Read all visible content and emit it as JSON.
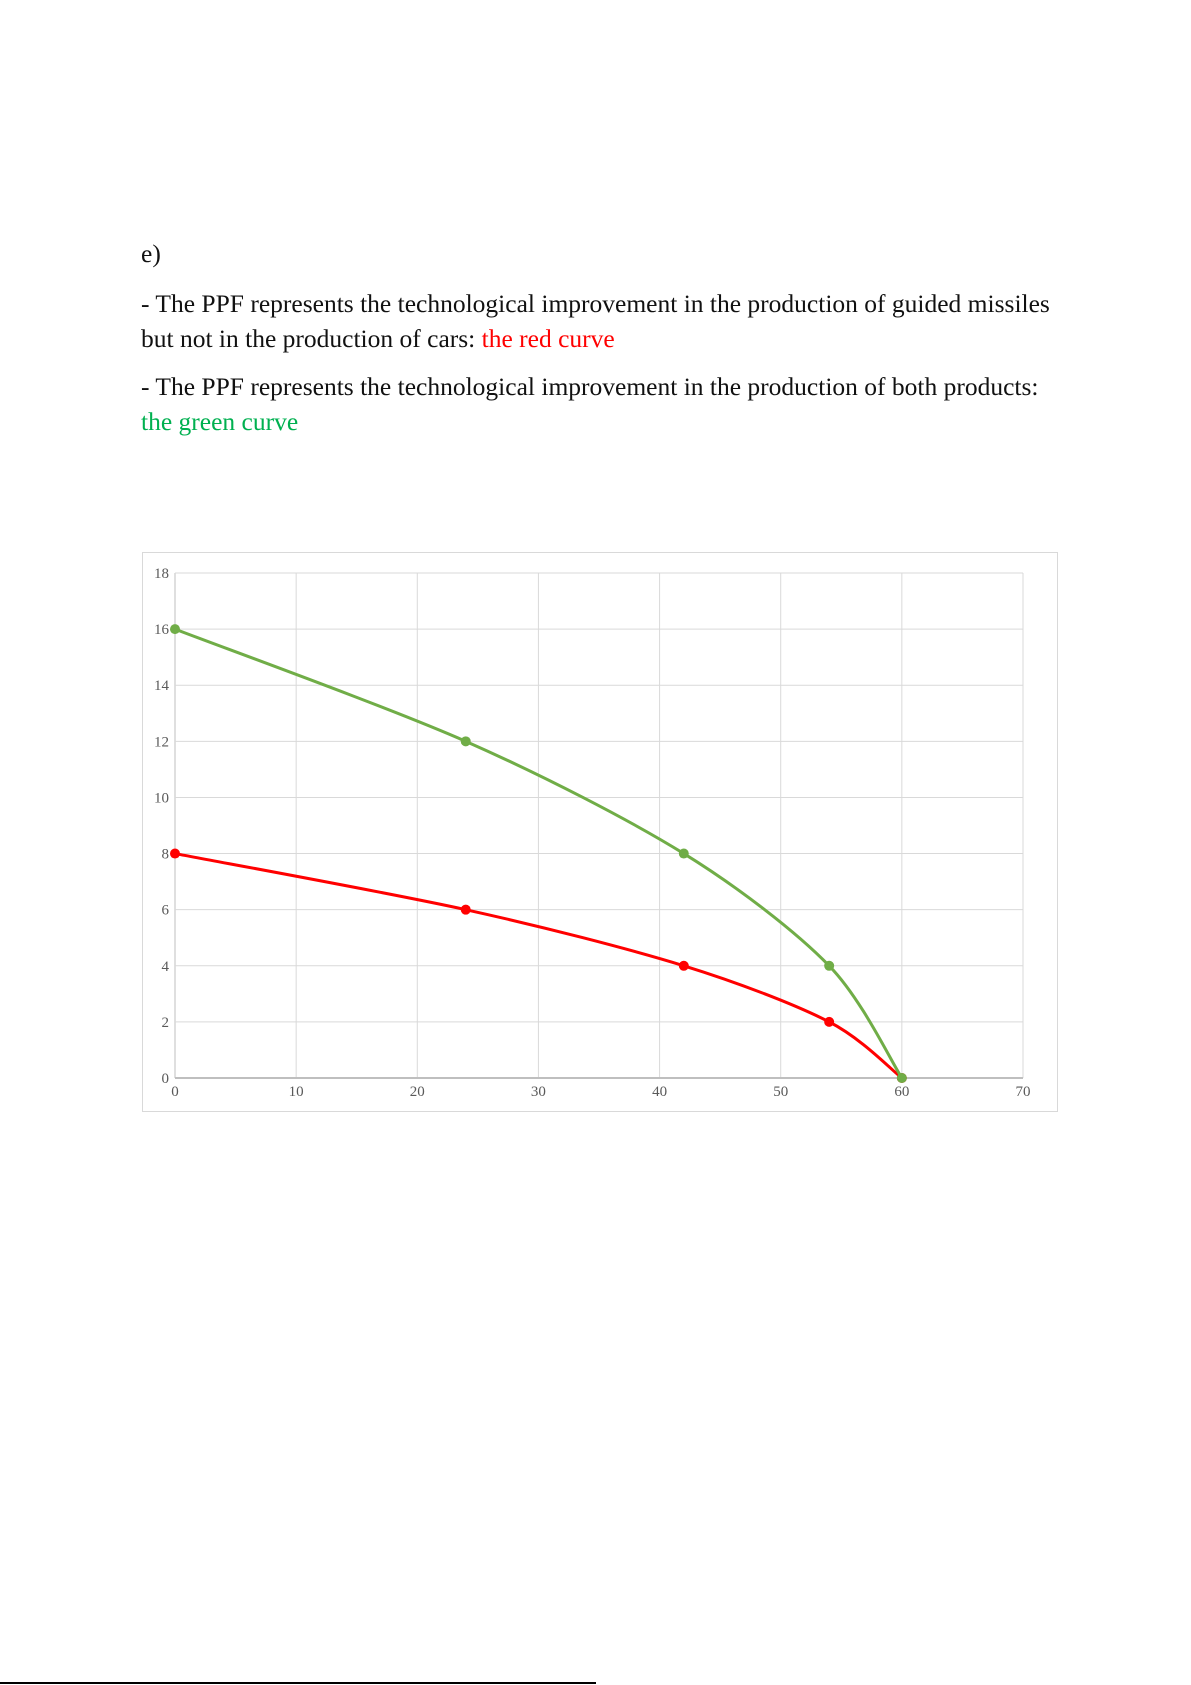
{
  "section_label": "e)",
  "bullets": [
    {
      "text": "- The PPF represents the technological improvement in the production of guided missiles but not in the production of cars: ",
      "highlight": "the red curve",
      "highlight_color": "#ff0000"
    },
    {
      "text": "- The PPF represents the technological improvement in the production of both products: ",
      "highlight": "the green curve",
      "highlight_color": "#00b050"
    }
  ],
  "chart_data": {
    "type": "line",
    "title": "",
    "xlabel": "",
    "ylabel": "",
    "xlim": [
      0,
      70
    ],
    "ylim": [
      0,
      18
    ],
    "x_ticks": [
      0,
      10,
      20,
      30,
      40,
      50,
      60,
      70
    ],
    "y_ticks": [
      0,
      2,
      4,
      6,
      8,
      10,
      12,
      14,
      16,
      18
    ],
    "grid": true,
    "legend": "none",
    "smooth": true,
    "series": [
      {
        "color": "#ff0000",
        "points": [
          [
            0,
            8
          ],
          [
            24,
            6
          ],
          [
            42,
            4
          ],
          [
            54,
            2
          ],
          [
            60,
            0
          ]
        ]
      },
      {
        "color": "#70ad47",
        "points": [
          [
            0,
            16
          ],
          [
            24,
            12
          ],
          [
            42,
            8
          ],
          [
            54,
            4
          ],
          [
            60,
            0
          ]
        ]
      }
    ]
  }
}
